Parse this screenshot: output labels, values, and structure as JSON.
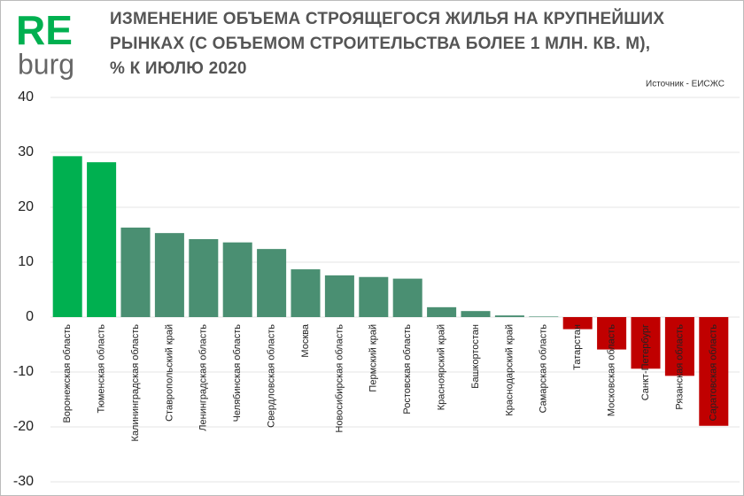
{
  "logo": {
    "top": "RE",
    "bottom": "burg"
  },
  "chart_data": {
    "type": "bar",
    "title": [
      "ИЗМЕНЕНИЕ ОБЪЕМА СТРОЯЩЕГОСЯ ЖИЛЬЯ НА КРУПНЕЙШИХ",
      "РЫНКАХ (С ОБЪЕМОМ СТРОИТЕЛЬСТВА БОЛЕЕ 1 МЛН. КВ. М),",
      "% К ИЮЛЮ 2020"
    ],
    "source": "Источник - ЕИСЖС",
    "categories": [
      "Воронежская область",
      "Тюменская область",
      "Калининградская область",
      "Ставропольский край",
      "Ленинградская область",
      "Челябинская область",
      "Свердловская область",
      "Москва",
      "Новосибирская область",
      "Пермский край",
      "Ростовская область",
      "Красноярский край",
      "Башкортостан",
      "Краснодарский край",
      "Самарская область",
      "Татарстан",
      "Московская область",
      "Санкт-Петербург",
      "Рязанская область",
      "Саратовская область"
    ],
    "values": [
      29.3,
      28.2,
      16.3,
      15.3,
      14.2,
      13.6,
      12.4,
      8.7,
      7.6,
      7.3,
      7.0,
      1.8,
      1.1,
      0.3,
      0.1,
      -2.2,
      -5.9,
      -9.4,
      -10.7,
      -19.8
    ],
    "colors": [
      "#00b050",
      "#00b050",
      "#4a8f72",
      "#4a8f72",
      "#4a8f72",
      "#4a8f72",
      "#4a8f72",
      "#4a8f72",
      "#4a8f72",
      "#4a8f72",
      "#4a8f72",
      "#4a8f72",
      "#4a8f72",
      "#4a8f72",
      "#4a8f72",
      "#c00000",
      "#c00000",
      "#c00000",
      "#c00000",
      "#c00000"
    ],
    "ylim": [
      -30,
      40
    ],
    "yticks": [
      -30,
      -20,
      -10,
      0,
      10,
      20,
      30,
      40
    ],
    "grid": true
  }
}
